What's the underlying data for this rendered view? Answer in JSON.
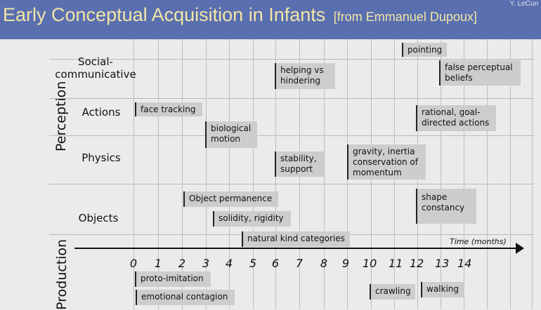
{
  "header": {
    "title": "Early Conceptual Acquisition in Infants",
    "source": "[from Emmanuel Dupoux]",
    "author": "Y. LeCun"
  },
  "side_labels": {
    "perception": "Perception",
    "production": "Production"
  },
  "rows": {
    "social": "Social-\ncommunicative",
    "actions": "Actions",
    "physics": "Physics",
    "objects": "Objects"
  },
  "axis": {
    "title": "Time (months)",
    "ticks": [
      "0",
      "1",
      "2",
      "3",
      "4",
      "5",
      "6",
      "7",
      "8",
      "9",
      "10",
      "11",
      "12",
      "13",
      "14"
    ]
  },
  "milestones": {
    "pointing": "pointing",
    "helping": "helping vs\nhindering",
    "false_belief": "false perceptual\nbeliefs",
    "face_tracking": "face tracking",
    "rational": "rational, goal-\ndirected actions",
    "biological_motion": "biological\nmotion",
    "stability": "stability,\nsupport",
    "gravity": "gravity, inertia\nconservation of\nmomentum",
    "object_permanence": "Object permanence",
    "shape_constancy": "shape\nconstancy",
    "solidity": "solidity, rigidity",
    "natural_kind": "natural kind categories",
    "proto_imitation": "proto-imitation",
    "emotional_contagion": "emotional contagion",
    "crawling": "crawling",
    "walking": "walking"
  }
}
